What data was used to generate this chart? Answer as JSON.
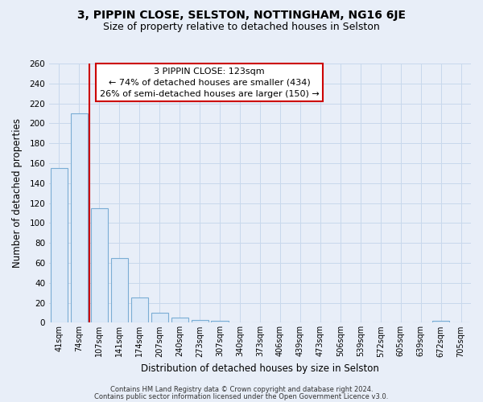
{
  "title": "3, PIPPIN CLOSE, SELSTON, NOTTINGHAM, NG16 6JE",
  "subtitle": "Size of property relative to detached houses in Selston",
  "xlabel": "Distribution of detached houses by size in Selston",
  "ylabel": "Number of detached properties",
  "bar_labels": [
    "41sqm",
    "74sqm",
    "107sqm",
    "141sqm",
    "174sqm",
    "207sqm",
    "240sqm",
    "273sqm",
    "307sqm",
    "340sqm",
    "373sqm",
    "406sqm",
    "439sqm",
    "473sqm",
    "506sqm",
    "539sqm",
    "572sqm",
    "605sqm",
    "639sqm",
    "672sqm",
    "705sqm"
  ],
  "bar_values": [
    155,
    210,
    115,
    65,
    25,
    10,
    5,
    3,
    2,
    0,
    0,
    0,
    0,
    0,
    0,
    0,
    0,
    0,
    0,
    2,
    0
  ],
  "bar_color_fill": "#dce9f8",
  "bar_color_edge": "#7aadd4",
  "red_line_after_idx": 1,
  "highlight_color": "#cc0000",
  "annotation_title": "3 PIPPIN CLOSE: 123sqm",
  "annotation_line1": "← 74% of detached houses are smaller (434)",
  "annotation_line2": "26% of semi-detached houses are larger (150) →",
  "footer_line1": "Contains HM Land Registry data © Crown copyright and database right 2024.",
  "footer_line2": "Contains public sector information licensed under the Open Government Licence v3.0.",
  "ylim": [
    0,
    260
  ],
  "yticks": [
    0,
    20,
    40,
    60,
    80,
    100,
    120,
    140,
    160,
    180,
    200,
    220,
    240,
    260
  ],
  "background_color": "#e8eef8",
  "plot_bg_color": "#e8eef8",
  "grid_color": "#c8d8ec",
  "title_fontsize": 10,
  "subtitle_fontsize": 9
}
